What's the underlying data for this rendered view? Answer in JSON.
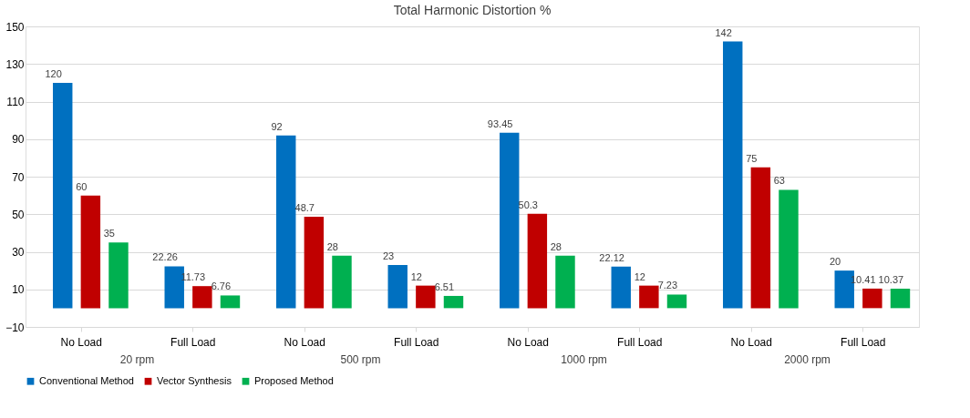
{
  "chart_data": {
    "type": "bar",
    "title": "Total Harmonic Distortion %",
    "categories": [
      "No Load",
      "Full Load",
      "No Load",
      "Full Load",
      "No Load",
      "Full Load",
      "No Load",
      "Full Load"
    ],
    "annotations": [
      "20 rpm",
      "500 rpm",
      "1000 rpm",
      "2000 rpm"
    ],
    "series": [
      {
        "name": "Conventional Method",
        "color": "#0070c0",
        "values": [
          120,
          22.26,
          92,
          23,
          93.45,
          22.12,
          142,
          20
        ]
      },
      {
        "name": "Vector Synthesis",
        "color": "#c00000",
        "values": [
          60,
          11.73,
          48.7,
          12,
          50.3,
          12,
          75,
          10.41
        ]
      },
      {
        "name": "Proposed Method",
        "color": "#00b050",
        "values": [
          35,
          6.76,
          28,
          6.51,
          28,
          7.23,
          63,
          10.37
        ]
      }
    ],
    "ylim": [
      -10,
      150
    ],
    "yticks": [
      -10,
      10,
      30,
      50,
      70,
      90,
      110,
      130,
      150
    ],
    "grid": "y",
    "legend": "bottom",
    "data_labels": true
  }
}
